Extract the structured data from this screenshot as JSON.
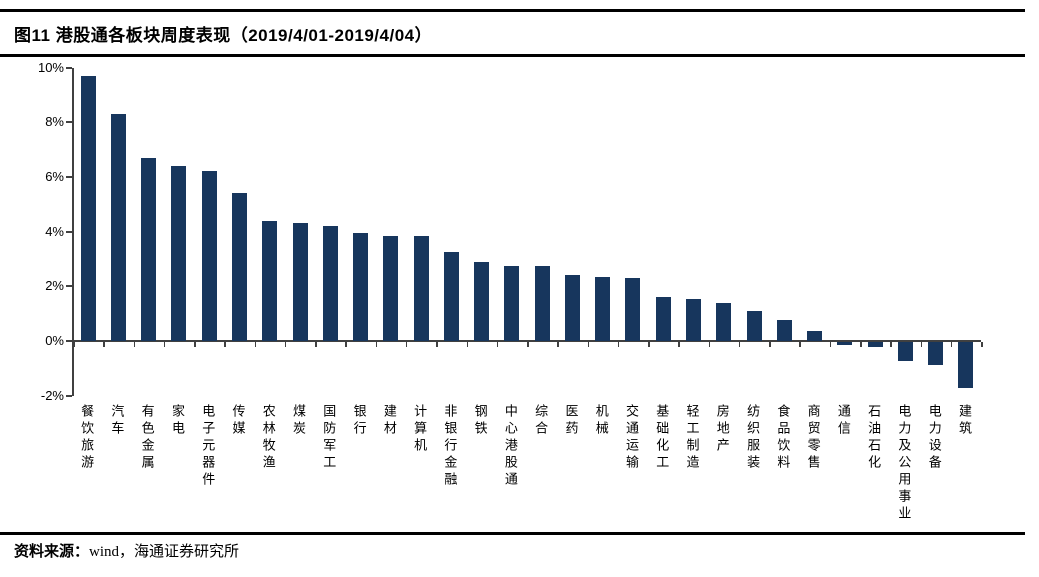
{
  "header": {
    "title": "图11 港股通各板块周度表现（2019/4/01-2019/4/04）"
  },
  "footer": {
    "prefix": "资料来源：",
    "source": "wind，海通证券研究所"
  },
  "colors": {
    "bar": "#17365D",
    "axis": "#404040",
    "text": "#000000",
    "background": "#ffffff"
  },
  "chart_data": {
    "type": "bar",
    "title": "港股通各板块周度表现（2019/4/01-2019/4/04）",
    "xlabel": "",
    "ylabel": "",
    "unit": "%",
    "ylim": [
      -2,
      10
    ],
    "grid": false,
    "legend_position": "none",
    "bar_color": "#17365D",
    "categories": [
      "餐饮旅游",
      "汽车",
      "有色金属",
      "家电",
      "电子元器件",
      "传媒",
      "农林牧渔",
      "煤炭",
      "国防军工",
      "银行",
      "建材",
      "计算机",
      "非银行金融",
      "钢铁",
      "中心港股通",
      "综合",
      "医药",
      "机械",
      "交通运输",
      "基础化工",
      "轻工制造",
      "房地产",
      "纺织服装",
      "食品饮料",
      "商贸零售",
      "通信",
      "石油石化",
      "电力及公用事业",
      "电力设备",
      "建筑"
    ],
    "values": [
      9.7,
      8.3,
      6.7,
      6.4,
      6.2,
      5.4,
      4.4,
      4.3,
      4.2,
      3.95,
      3.85,
      3.85,
      3.25,
      2.9,
      2.75,
      2.75,
      2.4,
      2.35,
      2.3,
      1.6,
      1.55,
      1.4,
      1.1,
      0.75,
      0.35,
      -0.1,
      -0.2,
      -0.7,
      -0.85,
      -1.7
    ],
    "yticks": [
      {
        "label": "10%",
        "value": 10
      },
      {
        "label": "8%",
        "value": 8
      },
      {
        "label": "6%",
        "value": 6
      },
      {
        "label": "4%",
        "value": 4
      },
      {
        "label": "2%",
        "value": 2
      },
      {
        "label": "0%",
        "value": 0
      },
      {
        "label": "-2%",
        "value": -2
      }
    ]
  }
}
